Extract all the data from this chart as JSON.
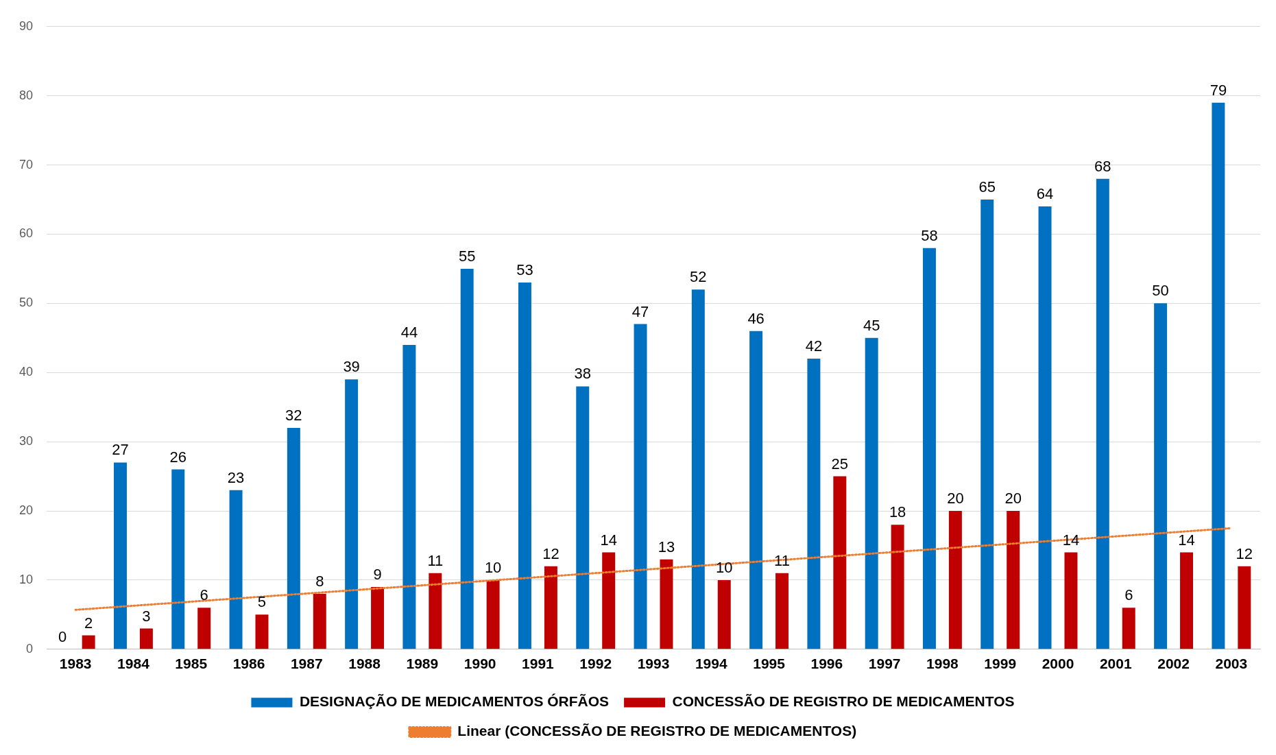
{
  "chart_data": {
    "type": "bar",
    "categories": [
      "1983",
      "1984",
      "1985",
      "1986",
      "1987",
      "1988",
      "1989",
      "1990",
      "1991",
      "1992",
      "1993",
      "1994",
      "1995",
      "1996",
      "1997",
      "1998",
      "1999",
      "2000",
      "2001",
      "2002",
      "2003"
    ],
    "series": [
      {
        "name": "DESIGNAÇÃO DE MEDICAMENTOS ÓRFÃOS",
        "color": "#0070c0",
        "values": [
          0,
          27,
          26,
          23,
          32,
          39,
          44,
          55,
          53,
          38,
          47,
          52,
          46,
          42,
          45,
          58,
          65,
          64,
          68,
          50,
          79
        ],
        "value_labels": [
          "0",
          "27",
          "26",
          "23",
          "32",
          "39",
          "44",
          "55",
          "53",
          "38",
          "47",
          "52",
          "46",
          "42",
          "45",
          "58",
          "65",
          "64",
          "68",
          "50",
          "79"
        ]
      },
      {
        "name": "CONCESSÃO DE REGISTRO DE MEDICAMENTOS",
        "color": "#c00000",
        "values": [
          2,
          3,
          6,
          5,
          8,
          9,
          11,
          10,
          12,
          14,
          13,
          10,
          11,
          25,
          18,
          20,
          20,
          14,
          6,
          14,
          12
        ],
        "value_labels": [
          "2",
          "3",
          "6",
          "5",
          "8",
          "9",
          "11",
          "10",
          "12",
          "14",
          "13",
          "10",
          "11",
          "25",
          "18",
          "20",
          "20",
          "14",
          "6",
          "14",
          "12"
        ]
      },
      {
        "name": "Linear (CONCESSÃO DE REGISTRO DE MEDICAMENTOS)",
        "type": "line",
        "color": "#ed7d31",
        "line_style": "dotted",
        "marker": "none",
        "values": [
          5.7,
          null,
          null,
          null,
          null,
          null,
          null,
          null,
          null,
          null,
          null,
          null,
          null,
          null,
          null,
          null,
          null,
          null,
          null,
          null,
          17.5
        ]
      }
    ],
    "ylim": [
      0,
      90
    ],
    "yticks": [
      0,
      10,
      20,
      30,
      40,
      50,
      60,
      70,
      80,
      90
    ],
    "grid": "y",
    "legend": "bottom"
  }
}
